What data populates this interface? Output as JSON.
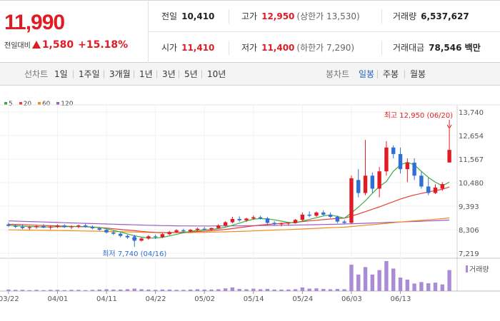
{
  "quote": {
    "price": "11,990",
    "change_label": "전일대비",
    "change": "1,580",
    "change_pct": "+15.18%"
  },
  "info": {
    "prev_label": "전일",
    "prev": "10,410",
    "high_label": "고가",
    "high": "12,950",
    "upper_limit": "(상한가 13,530)",
    "volume_label": "거래량",
    "volume": "6,537,627",
    "open_label": "시가",
    "open": "11,410",
    "low_label": "저가",
    "low": "11,400",
    "lower_limit": "(하한가 7,290)",
    "amount_label": "거래대금",
    "amount": "78,546 백만"
  },
  "toolbar": {
    "line_chart_label": "선차트",
    "line_periods": [
      "1일",
      "1주일",
      "3개월",
      "1년",
      "3년",
      "5년",
      "10년"
    ],
    "candle_label": "봉차트",
    "candle_periods": [
      "일봉",
      "주봉",
      "월봉"
    ],
    "active_candle": "일봉"
  },
  "legend": [
    {
      "name": "5",
      "color": "#3cab3c"
    },
    {
      "name": "20",
      "color": "#e8413c"
    },
    {
      "name": "60",
      "color": "#f08c1e"
    },
    {
      "name": "120",
      "color": "#9b5cc9"
    }
  ],
  "colors": {
    "up": "#e01b24",
    "down": "#2f6fd6",
    "ma5": "#3cab3c",
    "ma20": "#e8413c",
    "ma60": "#f08c1e",
    "ma120": "#9b5cc9",
    "volume": "#a98bd6"
  },
  "chart_data": {
    "type": "candlestick",
    "y_ticks": [
      "13,740",
      "12,654",
      "11,567",
      "10,480",
      "9,393",
      "8,306",
      "7,219"
    ],
    "ylim": [
      7219,
      13740
    ],
    "x_ticks": [
      "03/22",
      "04/01",
      "04/11",
      "04/22",
      "05/02",
      "05/14",
      "05/24",
      "06/03",
      "06/13"
    ],
    "annotations": {
      "high": "최고 12,950 (06/20)",
      "low": "최저 7,740 (04/16)"
    },
    "volume_label": "거래량",
    "candles": [
      {
        "o": 8550,
        "h": 8640,
        "l": 8430,
        "c": 8480
      },
      {
        "o": 8480,
        "h": 8560,
        "l": 8380,
        "c": 8440
      },
      {
        "o": 8440,
        "h": 8530,
        "l": 8330,
        "c": 8380
      },
      {
        "o": 8380,
        "h": 8480,
        "l": 8300,
        "c": 8420
      },
      {
        "o": 8420,
        "h": 8520,
        "l": 8350,
        "c": 8470
      },
      {
        "o": 8470,
        "h": 8560,
        "l": 8380,
        "c": 8400
      },
      {
        "o": 8400,
        "h": 8480,
        "l": 8310,
        "c": 8440
      },
      {
        "o": 8440,
        "h": 8550,
        "l": 8380,
        "c": 8500
      },
      {
        "o": 8500,
        "h": 8560,
        "l": 8390,
        "c": 8420
      },
      {
        "o": 8420,
        "h": 8500,
        "l": 8330,
        "c": 8450
      },
      {
        "o": 8450,
        "h": 8540,
        "l": 8380,
        "c": 8500
      },
      {
        "o": 8500,
        "h": 8580,
        "l": 8400,
        "c": 8430
      },
      {
        "o": 8430,
        "h": 8500,
        "l": 8330,
        "c": 8370
      },
      {
        "o": 8370,
        "h": 8440,
        "l": 8260,
        "c": 8300
      },
      {
        "o": 8300,
        "h": 8350,
        "l": 8130,
        "c": 8180
      },
      {
        "o": 8180,
        "h": 8260,
        "l": 8060,
        "c": 8120
      },
      {
        "o": 8120,
        "h": 8180,
        "l": 7950,
        "c": 8020
      },
      {
        "o": 8020,
        "h": 8080,
        "l": 7880,
        "c": 7950
      },
      {
        "o": 7950,
        "h": 8020,
        "l": 7740,
        "c": 7800
      },
      {
        "o": 7800,
        "h": 7960,
        "l": 7760,
        "c": 7900
      },
      {
        "o": 7900,
        "h": 8060,
        "l": 7840,
        "c": 8000
      },
      {
        "o": 8000,
        "h": 8080,
        "l": 7880,
        "c": 7960
      },
      {
        "o": 7960,
        "h": 8140,
        "l": 7920,
        "c": 8100
      },
      {
        "o": 8100,
        "h": 8250,
        "l": 8050,
        "c": 8200
      },
      {
        "o": 8200,
        "h": 8330,
        "l": 8150,
        "c": 8280
      },
      {
        "o": 8280,
        "h": 8350,
        "l": 8200,
        "c": 8230
      },
      {
        "o": 8230,
        "h": 8330,
        "l": 8180,
        "c": 8300
      },
      {
        "o": 8300,
        "h": 8400,
        "l": 8240,
        "c": 8350
      },
      {
        "o": 8350,
        "h": 8430,
        "l": 8280,
        "c": 8310
      },
      {
        "o": 8310,
        "h": 8400,
        "l": 8260,
        "c": 8380
      },
      {
        "o": 8380,
        "h": 8560,
        "l": 8340,
        "c": 8500
      },
      {
        "o": 8500,
        "h": 8700,
        "l": 8450,
        "c": 8650
      },
      {
        "o": 8650,
        "h": 8900,
        "l": 8600,
        "c": 8800
      },
      {
        "o": 8800,
        "h": 8920,
        "l": 8680,
        "c": 8740
      },
      {
        "o": 8740,
        "h": 8860,
        "l": 8660,
        "c": 8820
      },
      {
        "o": 8820,
        "h": 8960,
        "l": 8760,
        "c": 8880
      },
      {
        "o": 8880,
        "h": 8950,
        "l": 8780,
        "c": 8830
      },
      {
        "o": 8830,
        "h": 8900,
        "l": 8550,
        "c": 8620
      },
      {
        "o": 8620,
        "h": 8700,
        "l": 8500,
        "c": 8560
      },
      {
        "o": 8560,
        "h": 8640,
        "l": 8460,
        "c": 8590
      },
      {
        "o": 8590,
        "h": 8660,
        "l": 8500,
        "c": 8620
      },
      {
        "o": 8620,
        "h": 8800,
        "l": 8580,
        "c": 8760
      },
      {
        "o": 8760,
        "h": 9100,
        "l": 8700,
        "c": 9000
      },
      {
        "o": 9000,
        "h": 9150,
        "l": 8880,
        "c": 8950
      },
      {
        "o": 8950,
        "h": 9150,
        "l": 8900,
        "c": 9100
      },
      {
        "o": 9100,
        "h": 9200,
        "l": 8950,
        "c": 9000
      },
      {
        "o": 9000,
        "h": 9100,
        "l": 8850,
        "c": 8900
      },
      {
        "o": 8900,
        "h": 8960,
        "l": 8600,
        "c": 8680
      },
      {
        "o": 8680,
        "h": 8760,
        "l": 8560,
        "c": 8620
      },
      {
        "o": 8620,
        "h": 10800,
        "l": 8560,
        "c": 10680
      },
      {
        "o": 10600,
        "h": 11100,
        "l": 9800,
        "c": 10000
      },
      {
        "o": 10000,
        "h": 12450,
        "l": 9900,
        "c": 10800
      },
      {
        "o": 10800,
        "h": 10950,
        "l": 10000,
        "c": 10200
      },
      {
        "o": 10200,
        "h": 11200,
        "l": 9800,
        "c": 11000
      },
      {
        "o": 11000,
        "h": 12400,
        "l": 10800,
        "c": 12100
      },
      {
        "o": 12100,
        "h": 12200,
        "l": 11600,
        "c": 11800
      },
      {
        "o": 11800,
        "h": 12100,
        "l": 10900,
        "c": 11100
      },
      {
        "o": 11100,
        "h": 11600,
        "l": 10500,
        "c": 11400
      },
      {
        "o": 11400,
        "h": 11600,
        "l": 10600,
        "c": 10800
      },
      {
        "o": 10800,
        "h": 11000,
        "l": 10200,
        "c": 10300
      },
      {
        "o": 10300,
        "h": 10700,
        "l": 9900,
        "c": 10000
      },
      {
        "o": 10000,
        "h": 10400,
        "l": 9950,
        "c": 10250
      },
      {
        "o": 10200,
        "h": 10500,
        "l": 10100,
        "c": 10410
      },
      {
        "o": 11410,
        "h": 12950,
        "l": 11400,
        "c": 11990
      }
    ],
    "volumes": [
      0.05,
      0.04,
      0.04,
      0.03,
      0.04,
      0.03,
      0.04,
      0.04,
      0.03,
      0.04,
      0.04,
      0.03,
      0.04,
      0.05,
      0.06,
      0.05,
      0.05,
      0.06,
      0.08,
      0.06,
      0.05,
      0.04,
      0.05,
      0.05,
      0.04,
      0.04,
      0.05,
      0.06,
      0.05,
      0.05,
      0.06,
      0.09,
      0.12,
      0.07,
      0.06,
      0.08,
      0.06,
      0.07,
      0.05,
      0.05,
      0.05,
      0.06,
      0.12,
      0.08,
      0.09,
      0.07,
      0.06,
      0.07,
      0.06,
      0.88,
      0.55,
      0.8,
      0.55,
      0.7,
      1.0,
      0.75,
      0.45,
      0.38,
      0.25,
      0.3,
      0.26,
      0.28,
      0.22,
      0.7
    ],
    "ma5": [
      8510,
      8490,
      8470,
      8455,
      8440,
      8430,
      8435,
      8440,
      8445,
      8450,
      8455,
      8450,
      8430,
      8410,
      8350,
      8280,
      8200,
      8110,
      8030,
      7960,
      7920,
      7920,
      7950,
      8020,
      8090,
      8160,
      8230,
      8270,
      8300,
      8320,
      8360,
      8420,
      8510,
      8610,
      8710,
      8790,
      8820,
      8800,
      8760,
      8700,
      8640,
      8620,
      8700,
      8780,
      8860,
      8940,
      8990,
      8920,
      8840,
      9080,
      9350,
      9640,
      9990,
      10300,
      10530,
      11000,
      11300,
      11420,
      11300,
      11000,
      10720,
      10500,
      10330,
      10500
    ],
    "ma20": [
      8560,
      8550,
      8540,
      8525,
      8510,
      8500,
      8490,
      8480,
      8470,
      8460,
      8450,
      8440,
      8425,
      8405,
      8380,
      8350,
      8320,
      8290,
      8260,
      8230,
      8200,
      8180,
      8170,
      8170,
      8180,
      8190,
      8205,
      8220,
      8240,
      8260,
      8290,
      8320,
      8360,
      8400,
      8440,
      8480,
      8520,
      8550,
      8575,
      8600,
      8620,
      8650,
      8680,
      8710,
      8740,
      8770,
      8800,
      8820,
      8840,
      8930,
      9030,
      9140,
      9250,
      9360,
      9480,
      9600,
      9720,
      9820,
      9910,
      9980,
      10050,
      10110,
      10170,
      10280
    ],
    "ma60": [
      8300,
      8295,
      8290,
      8285,
      8280,
      8275,
      8270,
      8265,
      8260,
      8255,
      8250,
      8245,
      8240,
      8235,
      8228,
      8220,
      8212,
      8204,
      8196,
      8188,
      8180,
      8175,
      8172,
      8170,
      8170,
      8172,
      8175,
      8180,
      8186,
      8193,
      8200,
      8208,
      8218,
      8228,
      8238,
      8250,
      8262,
      8275,
      8288,
      8300,
      8312,
      8325,
      8340,
      8355,
      8370,
      8385,
      8400,
      8412,
      8425,
      8450,
      8480,
      8510,
      8540,
      8570,
      8600,
      8630,
      8660,
      8690,
      8715,
      8740,
      8765,
      8790,
      8815,
      8850
    ],
    "ma120": [
      8710,
      8700,
      8690,
      8680,
      8670,
      8660,
      8650,
      8640,
      8630,
      8620,
      8610,
      8600,
      8590,
      8580,
      8570,
      8560,
      8550,
      8540,
      8530,
      8520,
      8510,
      8502,
      8495,
      8490,
      8485,
      8482,
      8480,
      8478,
      8478,
      8478,
      8479,
      8480,
      8482,
      8485,
      8488,
      8492,
      8496,
      8500,
      8505,
      8510,
      8515,
      8520,
      8526,
      8532,
      8538,
      8545,
      8552,
      8560,
      8568,
      8578,
      8590,
      8602,
      8614,
      8626,
      8638,
      8650,
      8662,
      8674,
      8686,
      8698,
      8710,
      8722,
      8734,
      8750
    ]
  }
}
